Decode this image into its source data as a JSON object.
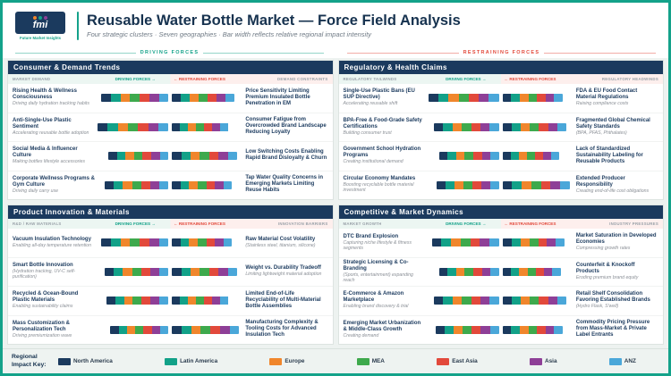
{
  "header": {
    "logo_text": "fmi",
    "logo_tagline": "Future Market Insights",
    "title": "Reusable Water Bottle Market — Force Field Analysis",
    "subtitle": "Four strategic clusters · Seven geographies · Bar width reflects relative regional impact intensity"
  },
  "force_labels": {
    "driving": "DRIVING FORCES",
    "restraining": "RESTRAINING FORCES"
  },
  "colors": {
    "navy": "#1b3a5e",
    "accent_teal": "#12a188",
    "accent_red": "#e2493b"
  },
  "panels": [
    {
      "title": "Consumer & Demand Trends",
      "side_left": "MARKET DEMAND",
      "side_right": "DEMAND CONSTRAINTS",
      "driving_label": "DRIVING FORCES →",
      "restraining_label": "← RESTRAINING FORCES",
      "rows": [
        {
          "left": {
            "title": "Rising Health & Wellness Consciousness",
            "sub": "Driving daily hydration tracking habits"
          },
          "right": {
            "title": "Price Sensitivity Limiting Premium Insulated Bottle Penetration in EM",
            "sub": ""
          },
          "driving": 95,
          "restraining": 88
        },
        {
          "left": {
            "title": "Anti-Single-Use Plastic Sentiment",
            "sub": "Accelerating reusable bottle adoption"
          },
          "right": {
            "title": "Consumer Fatigue from Overcrowded Brand Landscape Reducing Loyalty",
            "sub": ""
          },
          "driving": 100,
          "restraining": 80
        },
        {
          "left": {
            "title": "Social Media & Influencer Culture",
            "sub": "Making bottles lifestyle accessories"
          },
          "right": {
            "title": "Low Switching Costs Enabling Rapid Brand Disloyalty & Churn",
            "sub": ""
          },
          "driving": 85,
          "restraining": 92
        },
        {
          "left": {
            "title": "Corporate Wellness Programs & Gym Culture",
            "sub": "Driving daily carry use"
          },
          "right": {
            "title": "Tap Water Quality Concerns in Emerging Markets Limiting Reuse Habits",
            "sub": ""
          },
          "driving": 90,
          "restraining": 85
        }
      ]
    },
    {
      "title": "Regulatory & Health Claims",
      "side_left": "REGULATORY TAILWINDS",
      "side_right": "REGULATORY HEADWINDS",
      "driving_label": "DRIVING FORCES →",
      "restraining_label": "← RESTRAINING FORCES",
      "rows": [
        {
          "left": {
            "title": "Single-Use Plastic Bans (EU SUP Directive)",
            "sub": "Accelerating reusable shift"
          },
          "right": {
            "title": "FDA & EU Food Contact Material Regulations",
            "sub": "Raising compliance costs"
          },
          "driving": 100,
          "restraining": 85
        },
        {
          "left": {
            "title": "BPA-Free & Food-Grade Safety Certifications",
            "sub": "Building consumer trust"
          },
          "right": {
            "title": "Fragmented Global Chemical Safety Standards",
            "sub": "(BPA, PFAS, Phthalates)"
          },
          "driving": 92,
          "restraining": 90
        },
        {
          "left": {
            "title": "Government School Hydration Programs",
            "sub": "Creating institutional demand"
          },
          "right": {
            "title": "Lack of Standardized Sustainability Labeling for Reusable Products",
            "sub": ""
          },
          "driving": 85,
          "restraining": 80
        },
        {
          "left": {
            "title": "Circular Economy Mandates",
            "sub": "Boosting recyclable bottle material investment"
          },
          "right": {
            "title": "Extended Producer Responsibility",
            "sub": "Creating end-of-life cost obligations"
          },
          "driving": 88,
          "restraining": 95
        }
      ]
    },
    {
      "title": "Product Innovation & Materials",
      "side_left": "R&D / RAW MATERIALS",
      "side_right": "INNOVATION BARRIERS",
      "driving_label": "DRIVING FORCES →",
      "restraining_label": "← RESTRAINING FORCES",
      "rows": [
        {
          "left": {
            "title": "Vacuum Insulation Technology",
            "sub": "Enabling all-day temperature retention"
          },
          "right": {
            "title": "Raw Material Cost Volatility",
            "sub": "(Stainless steel, titanium, silicone)"
          },
          "driving": 95,
          "restraining": 85
        },
        {
          "left": {
            "title": "Smart Bottle Innovation",
            "sub": "(Hydration tracking, UV-C self-purification)"
          },
          "right": {
            "title": "Weight vs. Durability Tradeoff",
            "sub": "Limiting lightweight material adoption"
          },
          "driving": 90,
          "restraining": 92
        },
        {
          "left": {
            "title": "Recycled & Ocean-Bound Plastic Materials",
            "sub": "Enabling sustainability claims"
          },
          "right": {
            "title": "Limited End-of-Life Recyclability of Multi-Material Bottle Assemblies",
            "sub": ""
          },
          "driving": 88,
          "restraining": 80
        },
        {
          "left": {
            "title": "Mass Customization & Personalization Tech",
            "sub": "Driving premiumization wave"
          },
          "right": {
            "title": "Manufacturing Complexity & Tooling Costs for Advanced Insulation Tech",
            "sub": ""
          },
          "driving": 82,
          "restraining": 95
        }
      ]
    },
    {
      "title": "Competitive & Market Dynamics",
      "side_left": "MARKET GROWTH",
      "side_right": "INDUSTRY PRESSURES",
      "driving_label": "DRIVING FORCES →",
      "restraining_label": "← RESTRAINING FORCES",
      "rows": [
        {
          "left": {
            "title": "DTC Brand Explosion",
            "sub": "Capturing niche lifestyle & fitness segments"
          },
          "right": {
            "title": "Market Saturation in Developed Economies",
            "sub": "Compressing growth rates"
          },
          "driving": 95,
          "restraining": 88
        },
        {
          "left": {
            "title": "Strategic Licensing & Co-Branding",
            "sub": "(Sports, entertainment) expanding reach"
          },
          "right": {
            "title": "Counterfeit & Knockoff Products",
            "sub": "Eroding premium brand equity"
          },
          "driving": 85,
          "restraining": 82
        },
        {
          "left": {
            "title": "E-Commerce & Amazon Marketplace",
            "sub": "Enabling brand discovery & trial"
          },
          "right": {
            "title": "Retail Shelf Consolidation Favoring Established Brands",
            "sub": "(Hydro Flask, S'well)"
          },
          "driving": 92,
          "restraining": 90
        },
        {
          "left": {
            "title": "Emerging Market Urbanization & Middle-Class Growth",
            "sub": "Creating demand"
          },
          "right": {
            "title": "Commodity Pricing Pressure from Mass-Market & Private Label Entrants",
            "sub": ""
          },
          "driving": 90,
          "restraining": 85
        }
      ]
    }
  ],
  "legend": {
    "title": "Regional Impact Key:",
    "items": [
      {
        "label": "North America",
        "color": "#1b3a5e"
      },
      {
        "label": "Latin America",
        "color": "#12a188"
      },
      {
        "label": "Europe",
        "color": "#f0862c"
      },
      {
        "label": "MEA",
        "color": "#3ea94c"
      },
      {
        "label": "East Asia",
        "color": "#e2493b"
      },
      {
        "label": "Asia",
        "color": "#8e3f97"
      },
      {
        "label": "ANZ",
        "color": "#4aa7d9"
      }
    ]
  }
}
